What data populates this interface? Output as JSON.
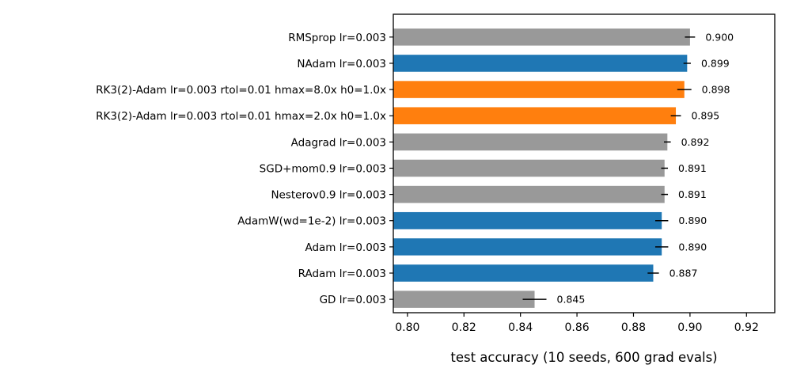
{
  "chart_data": {
    "type": "bar",
    "orientation": "horizontal",
    "title": "",
    "xlabel": "test accuracy (10 seeds, 600 grad evals)",
    "ylabel": "",
    "xlim": [
      0.795,
      0.93
    ],
    "xticks": [
      "0.80",
      "0.82",
      "0.84",
      "0.86",
      "0.88",
      "0.90",
      "0.92"
    ],
    "xtick_values": [
      0.8,
      0.82,
      0.84,
      0.86,
      0.88,
      0.9,
      0.92
    ],
    "grid": false,
    "legend": "none",
    "colors": {
      "gray": "#999999",
      "blue": "#1f77b4",
      "orange": "#ff7f0e"
    },
    "bars": [
      {
        "label": "RMSprop lr=0.003",
        "value": 0.9,
        "value_label": "0.900",
        "err": 0.0018,
        "color": "gray"
      },
      {
        "label": "NAdam lr=0.003",
        "value": 0.899,
        "value_label": "0.899",
        "err": 0.0013,
        "color": "blue"
      },
      {
        "label": "RK3(2)-Adam lr=0.003 rtol=0.01 hmax=8.0x h0=1.0x",
        "value": 0.898,
        "value_label": "0.898",
        "err": 0.0025,
        "color": "orange"
      },
      {
        "label": "RK3(2)-Adam lr=0.003 rtol=0.01 hmax=2.0x h0=1.0x",
        "value": 0.895,
        "value_label": "0.895",
        "err": 0.0018,
        "color": "orange"
      },
      {
        "label": "Adagrad lr=0.003",
        "value": 0.892,
        "value_label": "0.892",
        "err": 0.0012,
        "color": "gray"
      },
      {
        "label": "SGD+mom0.9 lr=0.003",
        "value": 0.891,
        "value_label": "0.891",
        "err": 0.0012,
        "color": "gray"
      },
      {
        "label": "Nesterov0.9 lr=0.003",
        "value": 0.891,
        "value_label": "0.891",
        "err": 0.0012,
        "color": "gray"
      },
      {
        "label": "AdamW(wd=1e-2) lr=0.003",
        "value": 0.89,
        "value_label": "0.890",
        "err": 0.0023,
        "color": "blue"
      },
      {
        "label": "Adam lr=0.003",
        "value": 0.89,
        "value_label": "0.890",
        "err": 0.0023,
        "color": "blue"
      },
      {
        "label": "RAdam lr=0.003",
        "value": 0.887,
        "value_label": "0.887",
        "err": 0.002,
        "color": "blue"
      },
      {
        "label": "GD lr=0.003",
        "value": 0.845,
        "value_label": "0.845",
        "err": 0.0042,
        "color": "gray"
      }
    ]
  }
}
